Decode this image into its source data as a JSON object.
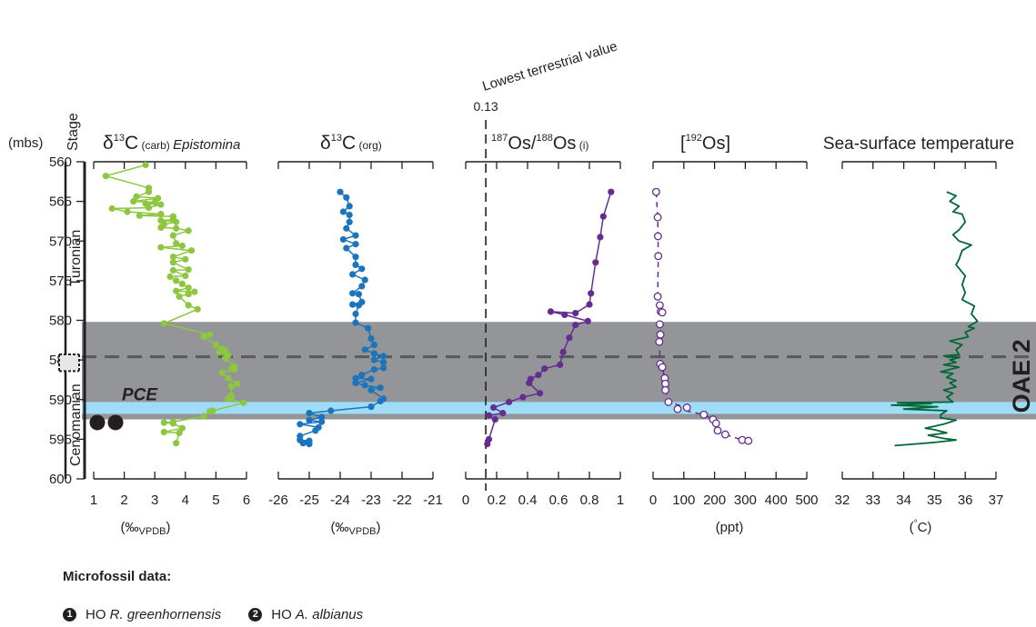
{
  "depth_axis": {
    "unit_label": "(mbs)",
    "stage_header": "Stage",
    "range": [
      560,
      600
    ],
    "ticks": [
      "560",
      "565",
      "570",
      "575",
      "580",
      "585",
      "590",
      "595",
      "600"
    ],
    "stages": [
      {
        "name": "Turonian",
        "from": 560,
        "to": 584.3
      },
      {
        "name": "Cenomanian",
        "from": 586.4,
        "to": 600
      }
    ]
  },
  "zones": {
    "oae2_label": "OAE 2",
    "oae2_range": [
      580.2,
      592.5
    ],
    "pce_label": "PCE",
    "pce_range": [
      590.3,
      591.8
    ],
    "boundary_depth": 584.6
  },
  "microfossil": {
    "title": "Microfossil data:",
    "markers": [
      {
        "symbol": "1",
        "prefix": "HO ",
        "taxon": "R. greenhornensis",
        "depth": 592.2
      },
      {
        "symbol": "2",
        "prefix": "HO ",
        "taxon": "A. albianus",
        "depth": 592.2
      }
    ]
  },
  "chart_data": [
    {
      "type": "line",
      "title_main": "δ",
      "title_sup": "13",
      "title_rest": "C",
      "title_sub": " (carb) ",
      "title_italic": "Epistomina",
      "xlabel": "(‰VPDB)",
      "xlabel_paren": "(‰",
      "xlabel_sub": "VPDB",
      "xlabel_close": ")",
      "ticks": [
        "1",
        "2",
        "3",
        "4",
        "5",
        "6"
      ],
      "xlim": [
        1,
        6
      ],
      "color": "#8dc63f",
      "marker": "filled",
      "points": [
        [
          2.7,
          560.4
        ],
        [
          1.4,
          561.8
        ],
        [
          2.8,
          563.3
        ],
        [
          2.8,
          563.8
        ],
        [
          2.4,
          564.4
        ],
        [
          3.1,
          564.6
        ],
        [
          2.3,
          565.0
        ],
        [
          3.0,
          565.1
        ],
        [
          2.7,
          565.3
        ],
        [
          3.2,
          565.4
        ],
        [
          2.8,
          565.8
        ],
        [
          1.6,
          565.9
        ],
        [
          2.1,
          566.3
        ],
        [
          3.2,
          566.6
        ],
        [
          2.5,
          566.8
        ],
        [
          3.6,
          566.9
        ],
        [
          3.6,
          567.3
        ],
        [
          3.2,
          567.4
        ],
        [
          3.7,
          567.6
        ],
        [
          3.3,
          567.9
        ],
        [
          3.2,
          568.3
        ],
        [
          3.7,
          568.4
        ],
        [
          4.1,
          568.7
        ],
        [
          3.6,
          569.3
        ],
        [
          3.7,
          570.3
        ],
        [
          3.9,
          570.6
        ],
        [
          3.2,
          570.8
        ],
        [
          4.2,
          571.2
        ],
        [
          3.6,
          572.0
        ],
        [
          4.0,
          572.3
        ],
        [
          3.6,
          572.7
        ],
        [
          4.1,
          573.6
        ],
        [
          3.6,
          573.7
        ],
        [
          4.0,
          574.4
        ],
        [
          3.5,
          574.5
        ],
        [
          3.7,
          575.0
        ],
        [
          3.9,
          575.4
        ],
        [
          4.1,
          575.9
        ],
        [
          3.7,
          576.3
        ],
        [
          4.3,
          576.4
        ],
        [
          4.1,
          576.7
        ],
        [
          3.8,
          577.0
        ],
        [
          4.1,
          578.1
        ],
        [
          4.4,
          578.6
        ],
        [
          3.3,
          580.4
        ],
        [
          4.8,
          581.8
        ],
        [
          4.6,
          582.1
        ],
        [
          5.0,
          583.1
        ],
        [
          5.2,
          583.6
        ],
        [
          5.3,
          583.8
        ],
        [
          5.1,
          584.0
        ],
        [
          5.4,
          584.4
        ],
        [
          5.3,
          584.8
        ],
        [
          5.6,
          585.8
        ],
        [
          5.5,
          586.1
        ],
        [
          5.6,
          586.2
        ],
        [
          5.2,
          586.6
        ],
        [
          5.4,
          587.3
        ],
        [
          5.7,
          588.0
        ],
        [
          5.5,
          588.3
        ],
        [
          5.5,
          589.5
        ],
        [
          5.5,
          589.8
        ],
        [
          5.4,
          589.9
        ],
        [
          5.9,
          590.4
        ],
        [
          4.9,
          591.4
        ],
        [
          4.8,
          591.5
        ],
        [
          4.6,
          592.1
        ],
        [
          3.6,
          592.8
        ],
        [
          3.3,
          592.9
        ],
        [
          3.6,
          593.0
        ],
        [
          3.9,
          593.6
        ],
        [
          3.3,
          594.1
        ],
        [
          3.8,
          594.2
        ],
        [
          3.7,
          595.5
        ]
      ]
    },
    {
      "type": "line",
      "title_main": "δ",
      "title_sup": "13",
      "title_rest": "C",
      "title_sub": " (org)",
      "xlabel_paren": "(‰",
      "xlabel_sub": "VPDB",
      "xlabel_close": ")",
      "ticks": [
        "-26",
        "-25",
        "-24",
        "-23",
        "-22",
        "-21"
      ],
      "xlim": [
        -26,
        -21
      ],
      "color": "#1c75bc",
      "marker": "filled",
      "points": [
        [
          -24.0,
          563.8
        ],
        [
          -23.8,
          564.5
        ],
        [
          -23.7,
          565.6
        ],
        [
          -23.9,
          566.3
        ],
        [
          -23.7,
          566.7
        ],
        [
          -23.7,
          567.6
        ],
        [
          -23.8,
          568.4
        ],
        [
          -23.5,
          569.3
        ],
        [
          -23.9,
          569.8
        ],
        [
          -23.5,
          570.4
        ],
        [
          -23.8,
          570.9
        ],
        [
          -23.5,
          572.0
        ],
        [
          -23.5,
          573.0
        ],
        [
          -23.3,
          573.5
        ],
        [
          -23.6,
          574.2
        ],
        [
          -23.2,
          574.9
        ],
        [
          -23.3,
          575.7
        ],
        [
          -23.6,
          576.6
        ],
        [
          -23.4,
          576.7
        ],
        [
          -23.3,
          577.7
        ],
        [
          -23.6,
          578.0
        ],
        [
          -23.4,
          578.1
        ],
        [
          -23.5,
          579.2
        ],
        [
          -23.5,
          580.3
        ],
        [
          -23.1,
          581.0
        ],
        [
          -23.0,
          582.3
        ],
        [
          -22.9,
          583.1
        ],
        [
          -23.2,
          583.7
        ],
        [
          -22.9,
          584.2
        ],
        [
          -22.6,
          584.5
        ],
        [
          -22.9,
          585.0
        ],
        [
          -22.6,
          585.3
        ],
        [
          -22.6,
          586.0
        ],
        [
          -22.9,
          586.2
        ],
        [
          -23.3,
          586.9
        ],
        [
          -23.5,
          587.3
        ],
        [
          -23.0,
          587.4
        ],
        [
          -23.5,
          587.9
        ],
        [
          -23.2,
          588.2
        ],
        [
          -22.7,
          588.5
        ],
        [
          -23.0,
          588.8
        ],
        [
          -22.6,
          589.9
        ],
        [
          -22.7,
          590.2
        ],
        [
          -23.0,
          590.9
        ],
        [
          -24.3,
          591.4
        ],
        [
          -25.0,
          591.7
        ],
        [
          -24.6,
          592.2
        ],
        [
          -25.0,
          592.6
        ],
        [
          -24.6,
          592.8
        ],
        [
          -25.3,
          593.1
        ],
        [
          -24.7,
          593.5
        ],
        [
          -24.8,
          593.9
        ],
        [
          -25.3,
          594.6
        ],
        [
          -25.3,
          595.1
        ],
        [
          -25.0,
          595.2
        ],
        [
          -25.2,
          595.5
        ],
        [
          -25.0,
          595.6
        ]
      ]
    },
    {
      "type": "line",
      "title_sup1": "187",
      "title_mid": "Os/",
      "title_sup2": "188",
      "title_rest": "Os",
      "title_sub": " (i)",
      "ticks": [
        "0",
        "0.2",
        "0.4",
        "0.6",
        "0.8",
        "1"
      ],
      "xlim": [
        0,
        1
      ],
      "color": "#662d91",
      "marker": "filled",
      "reference_line": {
        "value": 0.13,
        "value_label": "0.13",
        "label": "Lowest terrestrial value"
      },
      "points": [
        [
          0.94,
          563.8
        ],
        [
          0.89,
          566.9
        ],
        [
          0.87,
          569.5
        ],
        [
          0.84,
          572.7
        ],
        [
          0.81,
          576.6
        ],
        [
          0.8,
          578.0
        ],
        [
          0.71,
          579.1
        ],
        [
          0.55,
          578.9
        ],
        [
          0.64,
          579.3
        ],
        [
          0.79,
          580.1
        ],
        [
          0.71,
          580.6
        ],
        [
          0.67,
          582.2
        ],
        [
          0.63,
          584.0
        ],
        [
          0.61,
          585.6
        ],
        [
          0.51,
          586.1
        ],
        [
          0.47,
          586.9
        ],
        [
          0.42,
          587.4
        ],
        [
          0.41,
          587.9
        ],
        [
          0.48,
          589.2
        ],
        [
          0.37,
          589.7
        ],
        [
          0.28,
          590.3
        ],
        [
          0.18,
          591.0
        ],
        [
          0.24,
          591.7
        ],
        [
          0.15,
          592.0
        ],
        [
          0.19,
          592.5
        ],
        [
          0.15,
          595.0
        ],
        [
          0.14,
          595.6
        ]
      ]
    },
    {
      "type": "line",
      "title_open": "[",
      "title_sup": "192",
      "title_rest": "Os]",
      "xlabel": "(ppt)",
      "ticks": [
        "0",
        "100",
        "200",
        "300",
        "400",
        "500"
      ],
      "xlim": [
        0,
        500
      ],
      "color": "#662d91",
      "marker": "open",
      "dashed_line": true,
      "points": [
        [
          10,
          563.8
        ],
        [
          15,
          567.0
        ],
        [
          16,
          569.4
        ],
        [
          17,
          571.9
        ],
        [
          15,
          577.0
        ],
        [
          22,
          578.1
        ],
        [
          25,
          578.9
        ],
        [
          30,
          579.0
        ],
        [
          22,
          580.5
        ],
        [
          24,
          581.8
        ],
        [
          20,
          582.7
        ],
        [
          23,
          585.5
        ],
        [
          30,
          585.9
        ],
        [
          38,
          587.3
        ],
        [
          40,
          588.0
        ],
        [
          40,
          588.8
        ],
        [
          50,
          590.3
        ],
        [
          110,
          591.0
        ],
        [
          80,
          591.2
        ],
        [
          165,
          591.9
        ],
        [
          195,
          592.5
        ],
        [
          205,
          593.0
        ],
        [
          210,
          593.9
        ],
        [
          235,
          594.4
        ],
        [
          290,
          595.1
        ],
        [
          310,
          595.2
        ]
      ]
    },
    {
      "type": "line",
      "title": "Sea-surface temperature",
      "xlabel_paren": "(",
      "xlabel_deg": "°",
      "xlabel_close": "C)",
      "ticks": [
        "32",
        "33",
        "34",
        "35",
        "36",
        "37"
      ],
      "xlim": [
        32,
        37
      ],
      "color": "#006837",
      "marker": "none",
      "points": [
        [
          35.4,
          563.8
        ],
        [
          35.7,
          564.3
        ],
        [
          35.5,
          565.0
        ],
        [
          35.8,
          565.6
        ],
        [
          35.6,
          566.3
        ],
        [
          35.9,
          566.6
        ],
        [
          36.0,
          567.6
        ],
        [
          35.8,
          568.6
        ],
        [
          35.6,
          569.2
        ],
        [
          35.8,
          570.0
        ],
        [
          36.2,
          570.5
        ],
        [
          35.9,
          571.2
        ],
        [
          35.8,
          572.3
        ],
        [
          35.7,
          573.0
        ],
        [
          36.0,
          574.4
        ],
        [
          35.9,
          575.5
        ],
        [
          36.0,
          576.5
        ],
        [
          35.9,
          577.4
        ],
        [
          36.3,
          578.2
        ],
        [
          36.2,
          579.2
        ],
        [
          36.4,
          580.1
        ],
        [
          36.1,
          580.8
        ],
        [
          36.3,
          581.0
        ],
        [
          36.0,
          581.5
        ],
        [
          36.1,
          582.1
        ],
        [
          35.5,
          582.6
        ],
        [
          35.9,
          583.1
        ],
        [
          35.7,
          583.7
        ],
        [
          35.8,
          584.3
        ],
        [
          35.3,
          584.5
        ],
        [
          35.8,
          584.7
        ],
        [
          35.5,
          585.0
        ],
        [
          35.7,
          585.3
        ],
        [
          35.3,
          585.6
        ],
        [
          35.8,
          585.9
        ],
        [
          35.2,
          586.5
        ],
        [
          35.6,
          586.7
        ],
        [
          35.4,
          587.2
        ],
        [
          35.7,
          587.6
        ],
        [
          35.5,
          587.9
        ],
        [
          35.7,
          588.4
        ],
        [
          35.3,
          588.8
        ],
        [
          35.6,
          589.2
        ],
        [
          35.4,
          589.7
        ],
        [
          35.6,
          590.3
        ],
        [
          33.8,
          590.4
        ],
        [
          34.9,
          590.5
        ],
        [
          33.6,
          590.7
        ],
        [
          35.1,
          590.9
        ],
        [
          34.0,
          591.2
        ],
        [
          35.4,
          591.4
        ],
        [
          35.2,
          591.9
        ],
        [
          35.2,
          592.3
        ],
        [
          35.7,
          592.6
        ],
        [
          35.3,
          593.1
        ],
        [
          34.7,
          593.6
        ],
        [
          35.0,
          593.8
        ],
        [
          35.4,
          594.2
        ],
        [
          34.8,
          594.5
        ],
        [
          35.3,
          594.9
        ],
        [
          35.7,
          595.1
        ],
        [
          35.0,
          595.4
        ],
        [
          33.7,
          595.8
        ]
      ]
    }
  ]
}
